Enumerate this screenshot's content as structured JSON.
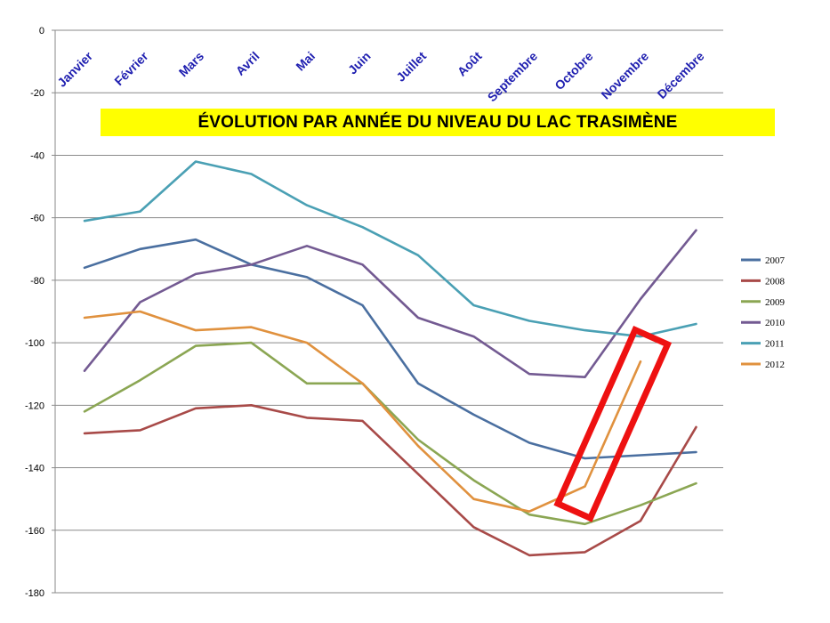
{
  "chart_data": {
    "type": "line",
    "title": "ÉVOLUTION PAR ANNÉE DU NIVEAU DU LAC TRASIMÈNE",
    "categories": [
      "Janvier",
      "Février",
      "Mars",
      "Avril",
      "Mai",
      "Juin",
      "Juillet",
      "Août",
      "Septembre",
      "Octobre",
      "Novembre",
      "Décembre"
    ],
    "ylim": [
      -180,
      0
    ],
    "yticks": [
      0,
      -20,
      -40,
      -60,
      -80,
      -100,
      -120,
      -140,
      -160,
      -180
    ],
    "x_axis_position": "top",
    "grid": true,
    "legend_position": "right",
    "series": [
      {
        "name": "2007",
        "color": "#4a6fa0",
        "values": [
          -76,
          -70,
          -67,
          -75,
          -79,
          -88,
          -113,
          -123,
          -132,
          -137,
          -136,
          -135
        ]
      },
      {
        "name": "2008",
        "color": "#a84a48",
        "values": [
          -129,
          -128,
          -121,
          -120,
          -124,
          -125,
          -142,
          -159,
          -168,
          -167,
          -157,
          -127
        ]
      },
      {
        "name": "2009",
        "color": "#8ba653",
        "values": [
          -122,
          -112,
          -101,
          -100,
          -113,
          -113,
          -131,
          -144,
          -155,
          -158,
          -152,
          -145
        ]
      },
      {
        "name": "2010",
        "color": "#735a92",
        "values": [
          -109,
          -87,
          -78,
          -75,
          -69,
          -75,
          -92,
          -98,
          -110,
          -111,
          -86,
          -64
        ]
      },
      {
        "name": "2011",
        "color": "#4aa0b4",
        "values": [
          -61,
          -58,
          -42,
          -46,
          -56,
          -63,
          -72,
          -88,
          -93,
          -96,
          -98,
          -94
        ]
      },
      {
        "name": "2012",
        "color": "#e0913e",
        "values": [
          -92,
          -90,
          -96,
          -95,
          -100,
          -113,
          -133,
          -150,
          -154,
          -146,
          -106,
          null
        ]
      }
    ],
    "annotation": {
      "shape": "rectangle",
      "color": "#ee1111",
      "highlights": "2012 Octobre–Novembre"
    }
  }
}
